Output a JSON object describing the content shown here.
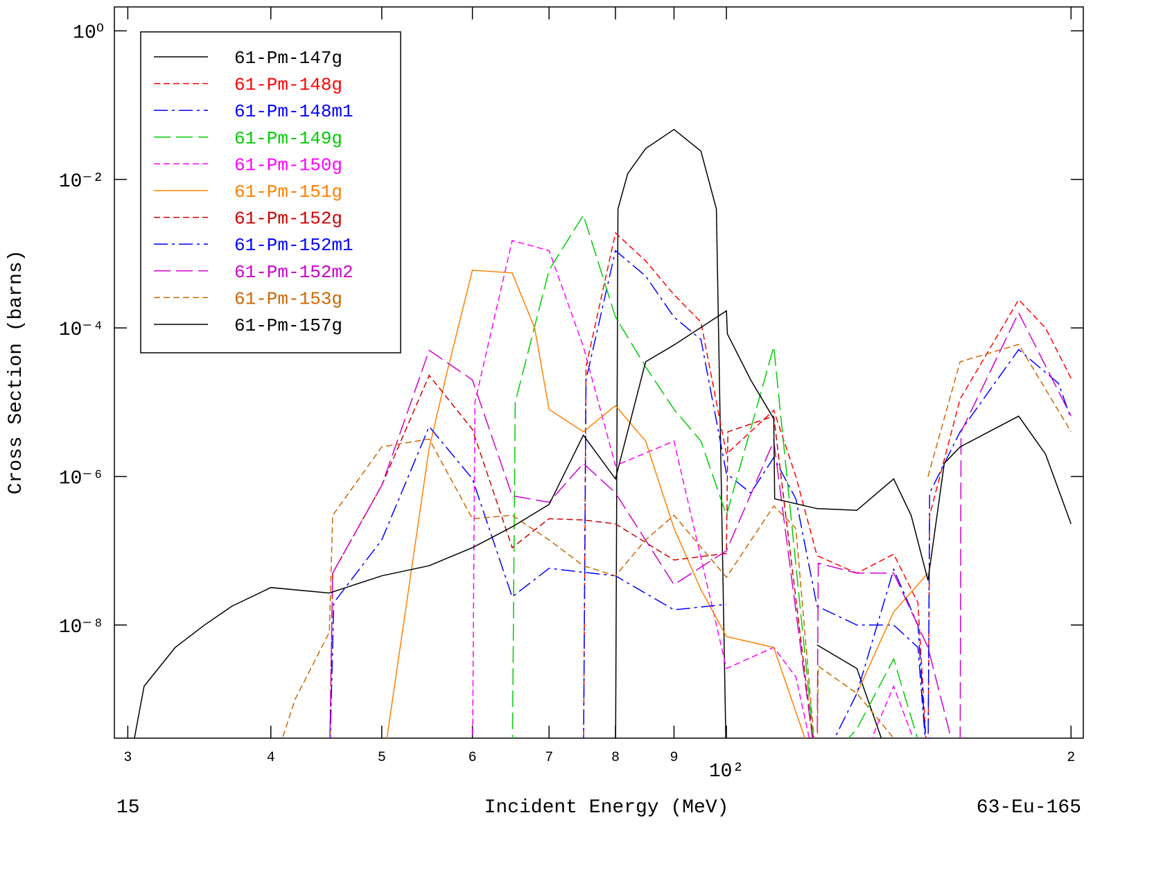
{
  "chart_data": {
    "type": "line",
    "xlabel": "Incident Energy (MeV)",
    "ylabel": "Cross Section (barns)",
    "left_note": "15",
    "right_note": "63-Eu-165",
    "xscale": "log",
    "yscale": "log",
    "xlim": [
      29.2,
      205
    ],
    "ylim": [
      3e-10,
      2.1
    ],
    "xticks": [
      {
        "value": 30,
        "label": "3"
      },
      {
        "value": 40,
        "label": "4"
      },
      {
        "value": 50,
        "label": "5"
      },
      {
        "value": 60,
        "label": "6"
      },
      {
        "value": 70,
        "label": "7"
      },
      {
        "value": 80,
        "label": "8"
      },
      {
        "value": 90,
        "label": "9"
      },
      {
        "value": 100,
        "label": "10²"
      },
      {
        "value": 200,
        "label": "2"
      }
    ],
    "yticks": [
      {
        "value": 1,
        "label": "10⁰"
      },
      {
        "value": 0.01,
        "label": "10⁻²"
      },
      {
        "value": 0.0001,
        "label": "10⁻⁴"
      },
      {
        "value": 1e-06,
        "label": "10⁻⁶"
      },
      {
        "value": 1e-08,
        "label": "10⁻⁸"
      }
    ],
    "legend": "upper left",
    "series": [
      {
        "name": "61-Pm-147g",
        "color": "#000000",
        "style": "solid",
        "x": [
          80,
          80.4,
          82,
          85,
          90,
          95,
          98,
          100,
          110,
          120,
          130,
          135,
          140
        ],
        "values": [
          1e-10,
          0.004,
          0.012,
          0.026,
          0.047,
          0.024,
          0.004,
          1e-10,
          null,
          5.4e-09,
          2.6e-09,
          5e-10,
          1e-10
        ]
      },
      {
        "name": "61-Pm-148g",
        "color": "#ff0000",
        "style": "dashed",
        "x": [
          75,
          75.4,
          80,
          85,
          90,
          95,
          100,
          110,
          115,
          120,
          130,
          140,
          147,
          150,
          150.5,
          160,
          180,
          190,
          200
        ],
        "values": [
          1e-10,
          3e-05,
          0.0019,
          0.0008,
          0.00028,
          0.00012,
          2e-06,
          7.8e-06,
          1e-06,
          8.6e-08,
          5e-08,
          9e-08,
          2e-08,
          1e-10,
          3e-07,
          1.1e-05,
          0.00024,
          0.0001,
          2.1e-05
        ]
      },
      {
        "name": "61-Pm-148m1",
        "color": "#0000ff",
        "style": "dashdot",
        "x": [
          75,
          75.4,
          80,
          85,
          90,
          95,
          100,
          105,
          110,
          115,
          120,
          130,
          140,
          147,
          150,
          150.5,
          160,
          180,
          195,
          200
        ],
        "values": [
          1e-10,
          2e-05,
          0.0011,
          0.0005,
          0.00014,
          7e-05,
          1.1e-06,
          6e-07,
          1.8e-06,
          5e-07,
          1.8e-08,
          1e-08,
          1e-08,
          5e-09,
          1e-10,
          6e-07,
          4e-06,
          5.1e-05,
          1.8e-05,
          6e-06
        ]
      },
      {
        "name": "61-Pm-149g",
        "color": "#00cc00",
        "style": "longdash",
        "x": [
          65,
          65.4,
          70,
          75,
          80,
          85,
          90,
          95,
          100,
          110,
          120,
          130,
          140,
          150
        ],
        "values": [
          1e-10,
          1e-05,
          0.0006,
          0.0033,
          0.00014,
          3e-05,
          8e-06,
          3e-06,
          3e-07,
          5.6e-05,
          1e-10,
          4e-10,
          3.5e-09,
          1e-10
        ]
      },
      {
        "name": "61-Pm-150g",
        "color": "#ff00ff",
        "style": "dashed",
        "x": [
          60,
          60.3,
          65,
          70,
          75,
          80,
          90,
          100,
          110,
          115,
          120,
          130,
          140,
          147
        ],
        "values": [
          1e-10,
          1e-05,
          0.0015,
          0.0011,
          5.6e-05,
          1.4e-06,
          3e-06,
          2.6e-09,
          5e-09,
          2e-09,
          1e-10,
          1e-10,
          1.5e-09,
          2e-10
        ]
      },
      {
        "name": "61-Pm-151g",
        "color": "#ff8000",
        "style": "solid",
        "x": [
          50,
          55,
          57,
          60,
          65,
          68,
          70,
          75,
          80,
          85,
          90,
          95,
          100,
          110,
          120,
          125,
          130,
          140,
          150
        ],
        "values": [
          1e-10,
          2.4e-06,
          2.5e-05,
          0.0006,
          0.00055,
          0.0001,
          8e-06,
          4e-06,
          9e-06,
          3e-06,
          2e-07,
          3e-08,
          7e-09,
          5e-09,
          1e-10,
          null,
          1.2e-09,
          1.5e-08,
          5e-08
        ]
      },
      {
        "name": "61-Pm-152g",
        "color": "#cc0000",
        "style": "dashed",
        "x": [
          45,
          45.3,
          50,
          55,
          60,
          65,
          70,
          75,
          80,
          90,
          100,
          100.3,
          110,
          120
        ],
        "values": [
          1e-10,
          5e-08,
          7.6e-07,
          2.3e-05,
          4.3e-06,
          1.1e-07,
          2.7e-07,
          2.6e-07,
          2.3e-07,
          7.5e-08,
          9.2e-08,
          4e-06,
          6.5e-06,
          1e-10
        ]
      },
      {
        "name": "61-Pm-152m1",
        "color": "#0000ff",
        "style": "dashdot",
        "x": [
          45,
          45.4,
          50,
          55,
          60,
          65,
          70,
          80,
          90,
          100,
          110,
          120,
          130,
          140,
          147,
          150
        ],
        "values": [
          1e-10,
          2e-08,
          1.4e-07,
          4.7e-06,
          9.3e-07,
          2.4e-08,
          5.8e-08,
          4.6e-08,
          1.6e-08,
          1.9e-08,
          null,
          1e-10,
          1.2e-09,
          5.6e-08,
          1e-08,
          1e-10
        ]
      },
      {
        "name": "61-Pm-152m2",
        "color": "#cc00cc",
        "style": "longdash",
        "x": [
          45,
          45.3,
          50,
          55,
          60,
          65,
          70,
          75,
          80,
          90,
          100,
          110,
          120,
          120.3,
          130,
          140,
          150,
          160,
          160.3,
          180,
          200
        ],
        "values": [
          1e-10,
          5e-08,
          7.6e-07,
          5e-05,
          2e-05,
          5.5e-07,
          4.5e-07,
          1.5e-06,
          6e-07,
          3.5e-08,
          1e-07,
          3e-06,
          1e-10,
          6.8e-08,
          5e-08,
          5e-08,
          5e-09,
          1e-10,
          4e-06,
          0.00016,
          6.5e-06
        ]
      },
      {
        "name": "61-Pm-153g",
        "color": "#cc6600",
        "style": "dashed",
        "x": [
          40,
          42,
          45,
          45.3,
          50,
          55,
          60,
          65,
          70,
          75,
          80,
          85,
          90,
          100,
          110,
          115,
          120,
          120.3,
          130,
          140,
          145,
          150,
          160,
          180,
          200
        ],
        "values": [
          1e-10,
          1e-09,
          8e-09,
          3e-07,
          2.5e-06,
          3.2e-06,
          2.7e-07,
          3e-07,
          1.4e-07,
          6.3e-08,
          4.6e-08,
          1.4e-07,
          3e-07,
          4.4e-08,
          4e-07,
          2e-07,
          1e-10,
          2.8e-09,
          1.2e-09,
          3e-10,
          null,
          1e-06,
          3.5e-05,
          6e-05,
          4e-06
        ]
      },
      {
        "name": "61-Pm-157g",
        "color": "#000000",
        "style": "solid",
        "x": [
          30,
          31,
          33,
          35,
          37,
          40,
          45,
          50,
          55,
          60,
          65,
          70,
          75,
          80,
          85,
          90,
          100,
          100.2,
          105,
          110,
          110.2,
          120,
          130,
          140,
          145,
          150,
          155,
          160,
          180,
          190,
          200
        ],
        "values": [
          1e-10,
          1.5e-09,
          5e-09,
          1e-08,
          1.8e-08,
          3.2e-08,
          2.7e-08,
          4.6e-08,
          6.3e-08,
          1.1e-07,
          2.1e-07,
          4.2e-07,
          3.6e-06,
          9.3e-07,
          3.5e-05,
          5.9e-05,
          0.00017,
          8.3e-05,
          2e-05,
          6e-06,
          5e-07,
          3.7e-07,
          3.5e-07,
          9.3e-07,
          3e-07,
          4e-08,
          1.5e-06,
          2.5e-06,
          6.5e-06,
          2e-06,
          2.3e-07
        ]
      }
    ]
  }
}
